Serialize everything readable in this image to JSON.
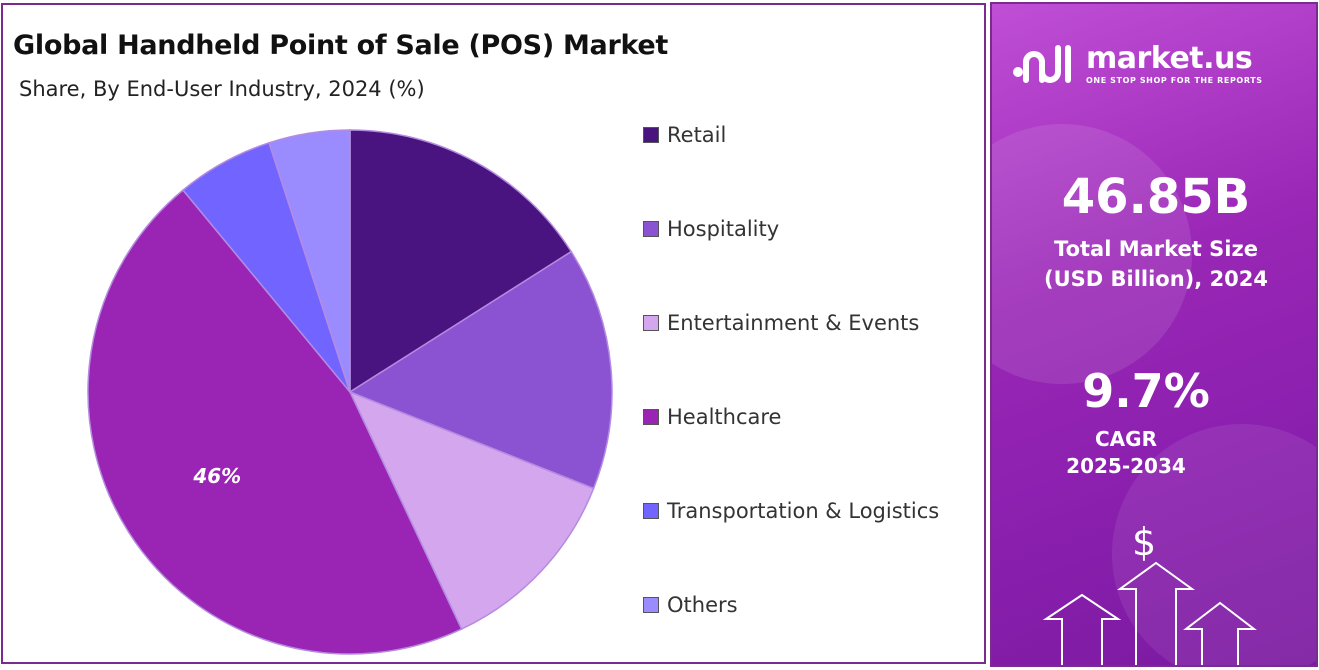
{
  "chart": {
    "title": "Global Handheld Point of Sale (POS) Market",
    "subtitle": "Share, By End-User Industry, 2024 (%)"
  },
  "chart_data": {
    "type": "pie",
    "title": "Global Handheld Point of Sale (POS) Market",
    "subtitle": "Share, By End-User Industry, 2024 (%)",
    "start_angle_deg": 0,
    "direction": "clockwise",
    "legend_position": "right",
    "slices": [
      {
        "name": "Retail",
        "value": 16,
        "color": "#4a1480",
        "label": ""
      },
      {
        "name": "Hospitality",
        "value": 15,
        "color": "#8b52d1",
        "label": ""
      },
      {
        "name": "Entertainment & Events",
        "value": 12,
        "color": "#d3a6ee",
        "label": ""
      },
      {
        "name": "Healthcare",
        "value": 46,
        "color": "#9a24b4",
        "label": "46%"
      },
      {
        "name": "Transportation & Logistics",
        "value": 6,
        "color": "#7265ff",
        "label": ""
      },
      {
        "name": "Others",
        "value": 5,
        "color": "#9a8cff",
        "label": ""
      }
    ]
  },
  "side_panel": {
    "brand_name": "market.us",
    "brand_tagline": "ONE STOP SHOP FOR THE REPORTS",
    "market_size_value": "46.85B",
    "market_size_label_line1": "Total Market Size",
    "market_size_label_line2": "(USD Billion), 2024",
    "cagr_value": "9.7%",
    "cagr_label": "CAGR",
    "cagr_period": "2025-2034",
    "dollar_symbol": "$",
    "icons": [
      "market-us-logo-icon",
      "dollar-icon",
      "up-arrow-icon"
    ]
  }
}
